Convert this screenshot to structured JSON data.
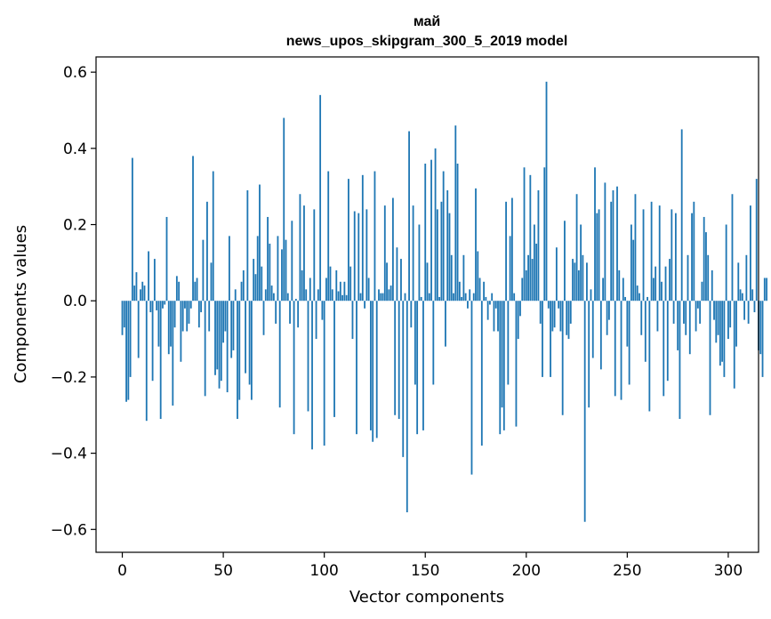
{
  "chart_data": {
    "type": "bar",
    "title": "май",
    "subtitle": "news_upos_skipgram_300_5_2019 model",
    "xlabel": "Vector components",
    "ylabel": "Components values",
    "xlim": [
      -13,
      315
    ],
    "ylim": [
      -0.66,
      0.64
    ],
    "xticks": [
      0,
      50,
      100,
      150,
      200,
      250,
      300
    ],
    "xtick_labels": [
      "0",
      "50",
      "100",
      "150",
      "200",
      "250",
      "300"
    ],
    "yticks": [
      -0.6,
      -0.4,
      -0.2,
      0.0,
      0.2,
      0.4,
      0.6
    ],
    "ytick_labels": [
      "−0.6",
      "−0.4",
      "−0.2",
      "0.0",
      "0.2",
      "0.4",
      "0.6"
    ],
    "bar_color": "#1f77b4",
    "values": [
      -0.09,
      -0.07,
      -0.265,
      -0.26,
      -0.2,
      0.375,
      0.04,
      0.075,
      -0.15,
      0.03,
      0.05,
      0.04,
      -0.315,
      0.13,
      -0.03,
      -0.21,
      0.11,
      -0.025,
      -0.12,
      -0.31,
      -0.02,
      -0.01,
      0.22,
      -0.14,
      -0.12,
      -0.275,
      -0.07,
      0.065,
      0.05,
      -0.16,
      -0.08,
      -0.02,
      -0.08,
      -0.06,
      -0.02,
      0.38,
      0.05,
      0.06,
      -0.07,
      -0.03,
      0.16,
      -0.25,
      0.26,
      -0.08,
      0.1,
      0.34,
      -0.195,
      -0.18,
      -0.23,
      -0.21,
      -0.11,
      -0.08,
      -0.24,
      0.17,
      -0.15,
      -0.13,
      0.03,
      -0.31,
      -0.26,
      0.05,
      0.08,
      -0.19,
      0.29,
      -0.22,
      -0.26,
      0.11,
      0.07,
      0.17,
      0.305,
      0.09,
      -0.09,
      0.03,
      0.22,
      0.15,
      0.04,
      0.02,
      -0.06,
      0.17,
      -0.28,
      0.135,
      0.48,
      0.16,
      0.02,
      -0.06,
      0.21,
      -0.35,
      0.005,
      -0.07,
      0.28,
      0.08,
      0.25,
      0.03,
      -0.29,
      0.06,
      -0.39,
      0.24,
      -0.1,
      0.03,
      0.54,
      -0.05,
      -0.38,
      0.06,
      0.34,
      0.09,
      0.03,
      -0.305,
      0.08,
      0.025,
      0.05,
      0.015,
      0.05,
      0.015,
      0.32,
      0.09,
      -0.1,
      0.235,
      -0.35,
      0.23,
      0.02,
      0.33,
      -0.02,
      0.24,
      0.06,
      -0.34,
      -0.37,
      0.34,
      -0.36,
      0.03,
      0.02,
      0.02,
      0.25,
      0.1,
      0.03,
      0.04,
      0.27,
      -0.3,
      0.14,
      -0.31,
      0.11,
      -0.41,
      0.02,
      -0.555,
      0.445,
      -0.07,
      0.25,
      -0.22,
      -0.35,
      0.2,
      0.01,
      -0.34,
      0.36,
      0.1,
      0.02,
      0.37,
      -0.22,
      0.4,
      0.24,
      0.01,
      0.26,
      0.34,
      -0.12,
      0.29,
      0.23,
      0.12,
      0.02,
      0.46,
      0.36,
      0.05,
      0.01,
      0.12,
      0.02,
      -0.02,
      0.03,
      -0.456,
      0.02,
      0.295,
      0.13,
      0.06,
      -0.38,
      0.05,
      0.01,
      -0.05,
      -0.01,
      0.02,
      -0.08,
      -0.02,
      -0.08,
      -0.35,
      -0.28,
      -0.34,
      0.26,
      -0.22,
      0.17,
      0.27,
      0.02,
      -0.33,
      -0.1,
      -0.04,
      0.06,
      0.35,
      0.08,
      0.12,
      0.33,
      0.11,
      0.2,
      0.15,
      0.29,
      -0.06,
      -0.2,
      0.35,
      0.575,
      -0.02,
      -0.2,
      -0.08,
      -0.07,
      0.14,
      -0.02,
      -0.08,
      -0.3,
      0.21,
      -0.09,
      -0.1,
      -0.06,
      0.11,
      0.1,
      0.28,
      0.08,
      0.2,
      0.12,
      -0.58,
      0.1,
      -0.28,
      0.03,
      -0.15,
      0.35,
      0.23,
      0.24,
      -0.18,
      0.06,
      0.31,
      -0.09,
      -0.05,
      0.26,
      0.29,
      -0.25,
      0.3,
      0.08,
      -0.26,
      0.06,
      0.01,
      -0.12,
      -0.22,
      0.2,
      0.16,
      0.28,
      0.04,
      0.02,
      -0.09,
      0.24,
      -0.16,
      0.01,
      -0.29,
      0.26,
      0.06,
      0.09,
      -0.08,
      0.25,
      0.05,
      -0.25,
      0.09,
      -0.21,
      0.11,
      0.24,
      -0.06,
      0.23,
      -0.13,
      -0.31,
      0.45,
      -0.06,
      -0.09,
      0.12,
      -0.14,
      0.23,
      0.26,
      -0.08,
      -0.02,
      -0.06,
      0.05,
      0.22,
      0.18,
      0.12,
      -0.3,
      0.08,
      -0.05,
      -0.11,
      -0.09,
      -0.17,
      -0.16,
      -0.2,
      0.2,
      -0.1,
      -0.07,
      0.28,
      -0.23,
      -0.12,
      0.1,
      0.03,
      0.02,
      -0.05,
      0.12,
      -0.06,
      0.25,
      0.03,
      -0.03,
      0.32,
      -0.13,
      -0.14,
      -0.2,
      0.06,
      0.06
    ]
  }
}
